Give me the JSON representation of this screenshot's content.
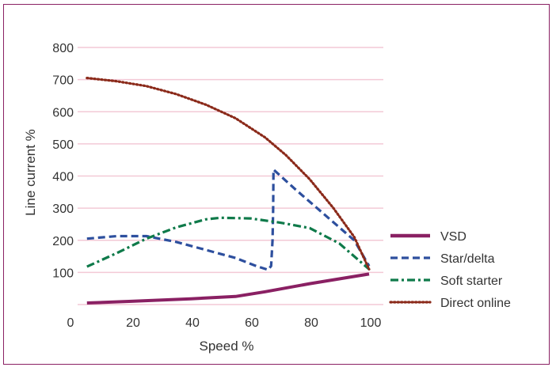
{
  "colors": {
    "border": "#8a2063",
    "grid": "#f3c9d6",
    "text": "#333333"
  },
  "chart_data": {
    "type": "line",
    "title": "",
    "xlabel": "Speed %",
    "ylabel": "Line current %",
    "xlim": [
      0,
      105
    ],
    "ylim": [
      0,
      800
    ],
    "x_ticks": [
      "0",
      "20",
      "40",
      "60",
      "80",
      "100"
    ],
    "x_tick_values": [
      0,
      20,
      40,
      60,
      80,
      100
    ],
    "y_ticks": [
      "100",
      "200",
      "300",
      "400",
      "500",
      "600",
      "700",
      "800"
    ],
    "y_tick_values": [
      100,
      200,
      300,
      400,
      500,
      600,
      700,
      800
    ],
    "grid": "horizontal",
    "legend_position": "right",
    "series": [
      {
        "name": "VSD",
        "color": "#8a2063",
        "style": "solid",
        "points": [
          [
            5,
            5
          ],
          [
            20,
            10
          ],
          [
            40,
            18
          ],
          [
            55,
            25
          ],
          [
            65,
            40
          ],
          [
            80,
            65
          ],
          [
            100,
            95
          ]
        ]
      },
      {
        "name": "Star/delta",
        "color": "#2d4f9e",
        "style": "dashed",
        "points": [
          [
            5,
            205
          ],
          [
            15,
            213
          ],
          [
            25,
            213
          ],
          [
            35,
            195
          ],
          [
            45,
            170
          ],
          [
            55,
            145
          ],
          [
            62,
            120
          ],
          [
            66,
            108
          ],
          [
            67,
            120
          ],
          [
            67.5,
            200
          ],
          [
            67.7,
            300
          ],
          [
            67.8,
            420
          ],
          [
            75,
            360
          ],
          [
            85,
            280
          ],
          [
            95,
            200
          ],
          [
            100,
            120
          ]
        ]
      },
      {
        "name": "Soft starter",
        "color": "#0f7a4a",
        "style": "dashdot",
        "points": [
          [
            5,
            118
          ],
          [
            15,
            160
          ],
          [
            25,
            205
          ],
          [
            35,
            240
          ],
          [
            45,
            265
          ],
          [
            50,
            270
          ],
          [
            60,
            268
          ],
          [
            70,
            255
          ],
          [
            80,
            238
          ],
          [
            90,
            190
          ],
          [
            100,
            110
          ]
        ]
      },
      {
        "name": "Direct online",
        "color": "#8b2a1a",
        "style": "dotted",
        "points": [
          [
            5,
            705
          ],
          [
            15,
            695
          ],
          [
            25,
            680
          ],
          [
            35,
            655
          ],
          [
            45,
            622
          ],
          [
            55,
            580
          ],
          [
            65,
            520
          ],
          [
            72,
            465
          ],
          [
            80,
            390
          ],
          [
            88,
            300
          ],
          [
            95,
            210
          ],
          [
            100,
            110
          ]
        ]
      }
    ]
  }
}
